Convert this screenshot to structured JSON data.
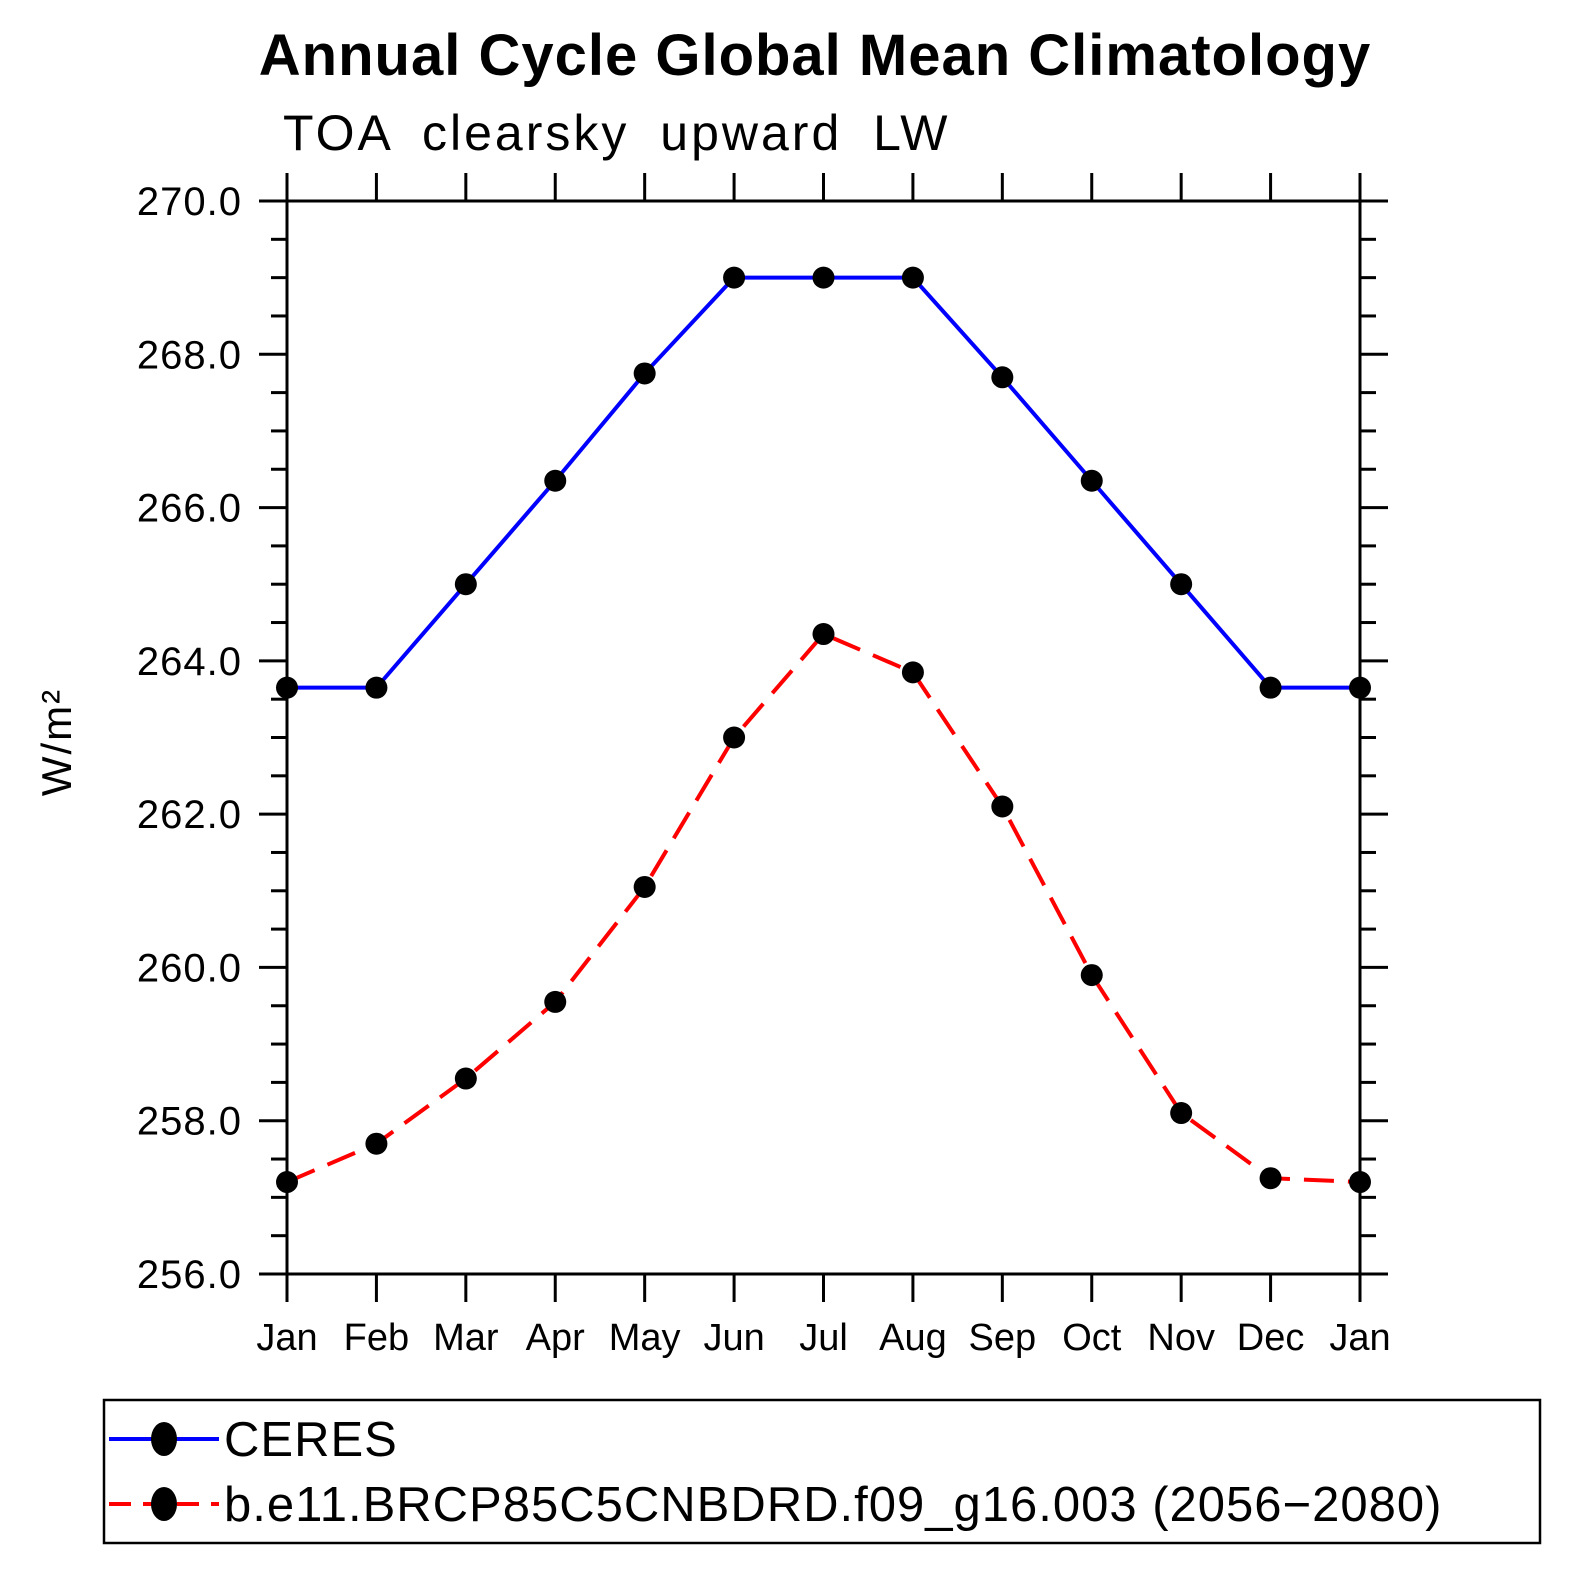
{
  "chart_data": {
    "type": "line",
    "title": "Annual Cycle Global Mean Climatology",
    "subtitle": "TOA clearsky upward LW",
    "ylabel": "W/m²",
    "xlabel": "",
    "x_categories": [
      "Jan",
      "Feb",
      "Mar",
      "Apr",
      "May",
      "Jun",
      "Jul",
      "Aug",
      "Sep",
      "Oct",
      "Nov",
      "Dec",
      "Jan"
    ],
    "ylim": [
      256.0,
      270.0
    ],
    "ytick_major": 2.0,
    "ytick_minor": 0.5,
    "ytick_labels": [
      "256.0",
      "258.0",
      "260.0",
      "262.0",
      "264.0",
      "266.0",
      "268.0",
      "270.0"
    ],
    "grid": false,
    "legend_position": "bottom-left",
    "axis_color": "#000000",
    "series": [
      {
        "name": "CERES",
        "color": "#0000ff",
        "line_style": "solid",
        "marker": "filled-circle",
        "marker_color": "#000000",
        "values": [
          263.65,
          263.65,
          265.0,
          266.35,
          267.75,
          269.0,
          269.0,
          269.0,
          267.7,
          266.35,
          265.0,
          263.65,
          263.65
        ]
      },
      {
        "name": "b.e11.BRCP85C5CNBDRD.f09_g16.003 (2056−2080)",
        "color": "#ff0000",
        "line_style": "dashed",
        "marker": "filled-circle",
        "marker_color": "#000000",
        "values": [
          257.2,
          257.7,
          258.55,
          259.55,
          261.05,
          263.0,
          264.35,
          263.85,
          262.1,
          259.9,
          258.1,
          257.25,
          257.2
        ]
      }
    ]
  }
}
